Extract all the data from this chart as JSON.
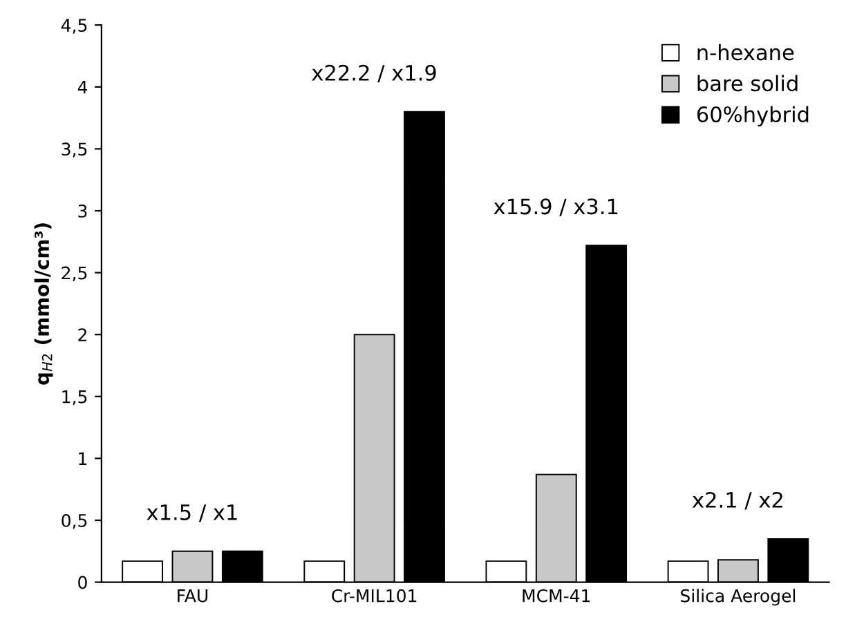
{
  "chart_data": {
    "type": "bar",
    "ylabel": "q$_{H2}$ (mmol/cm³)",
    "categories": [
      "FAU",
      "Cr-MIL101",
      "MCM-41",
      "Silica Aerogel"
    ],
    "series": [
      {
        "name": "n-hexane",
        "color": "#ffffff",
        "values": [
          0.17,
          0.17,
          0.17,
          0.17
        ]
      },
      {
        "name": "bare solid",
        "color": "#c8c8c8",
        "values": [
          0.25,
          2.0,
          0.87,
          0.18
        ]
      },
      {
        "name": "60%hybrid",
        "color": "#000000",
        "values": [
          0.25,
          3.8,
          2.72,
          0.35
        ]
      }
    ],
    "ylim": [
      0,
      4.5
    ],
    "yticks": [
      0,
      {
        "value": 0.5,
        "label": "0,5"
      },
      1,
      {
        "value": 1.5,
        "label": "1,5"
      },
      2,
      {
        "value": 2.5,
        "label": "2,5"
      },
      3,
      {
        "value": 3.5,
        "label": "3,5"
      },
      4,
      {
        "value": 4.5,
        "label": "4,5"
      }
    ],
    "annotations": [
      "x1.5 / x1",
      "x22.2 / x1.9",
      "x15.9 / x3.1",
      "x2.1 / x2"
    ],
    "legend": "top right",
    "grid": false
  }
}
